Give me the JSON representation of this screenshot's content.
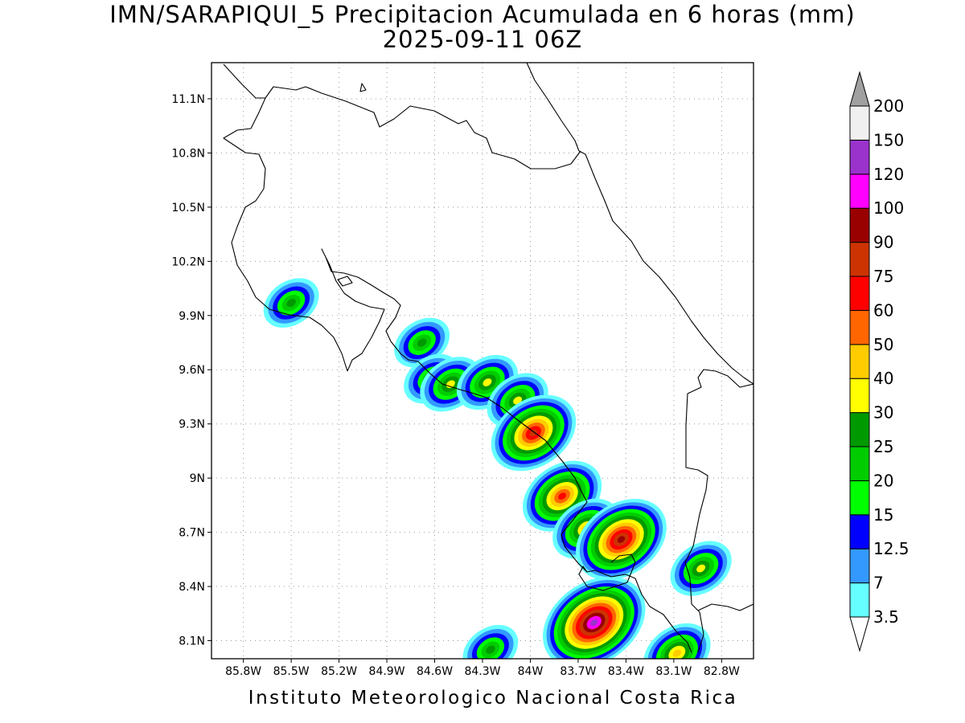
{
  "title": {
    "line1": "IMN/SARAPIQUI_5 Precipitacion Acumulada en 6 horas (mm)",
    "line2": "2025-09-11 06Z"
  },
  "footer": "Instituto Meteorologico Nacional Costa Rica",
  "map": {
    "lon_range": [
      -86.0,
      -82.6
    ],
    "lat_range": [
      8.0,
      11.3
    ],
    "lon_ticks": [
      {
        "value": -85.8,
        "label": "85.8W"
      },
      {
        "value": -85.5,
        "label": "85.5W"
      },
      {
        "value": -85.2,
        "label": "85.2W"
      },
      {
        "value": -84.9,
        "label": "84.9W"
      },
      {
        "value": -84.6,
        "label": "84.6W"
      },
      {
        "value": -84.3,
        "label": "84.3W"
      },
      {
        "value": -84.0,
        "label": "84W"
      },
      {
        "value": -83.7,
        "label": "83.7W"
      },
      {
        "value": -83.4,
        "label": "83.4W"
      },
      {
        "value": -83.1,
        "label": "83.1W"
      },
      {
        "value": -82.8,
        "label": "82.8W"
      }
    ],
    "lat_ticks": [
      {
        "value": 11.1,
        "label": "11.1N"
      },
      {
        "value": 10.8,
        "label": "10.8N"
      },
      {
        "value": 10.5,
        "label": "10.5N"
      },
      {
        "value": 10.2,
        "label": "10.2N"
      },
      {
        "value": 9.9,
        "label": "9.9N"
      },
      {
        "value": 9.6,
        "label": "9.6N"
      },
      {
        "value": 9.3,
        "label": "9.3N"
      },
      {
        "value": 9.0,
        "label": "9N"
      },
      {
        "value": 8.7,
        "label": "8.7N"
      },
      {
        "value": 8.4,
        "label": "8.4N"
      },
      {
        "value": 8.1,
        "label": "8.1N"
      }
    ],
    "grid": true,
    "coastline_color": "#000000"
  },
  "colorbar": {
    "labels": [
      "200",
      "150",
      "120",
      "100",
      "90",
      "75",
      "60",
      "50",
      "40",
      "30",
      "25",
      "20",
      "15",
      "12.5",
      "7",
      "3.5"
    ],
    "colors_bottom_to_top": [
      "#66ffff",
      "#3399ff",
      "#0000ff",
      "#00ff00",
      "#00cc00",
      "#009900",
      "#ffff00",
      "#ffcc00",
      "#ff6600",
      "#ff0000",
      "#cc3300",
      "#990000",
      "#ff00ff",
      "#9933cc",
      "#f0f0f0"
    ],
    "top_triangle_color": "#a0a0a0",
    "bottom_triangle_color": "#ffffff"
  },
  "precip_cells": [
    {
      "lon": -85.5,
      "lat": 9.97,
      "peak_mm": 25
    },
    {
      "lon": -84.68,
      "lat": 9.75,
      "peak_mm": 25
    },
    {
      "lon": -84.62,
      "lat": 9.55,
      "peak_mm": 25
    },
    {
      "lon": -84.5,
      "lat": 9.52,
      "peak_mm": 30
    },
    {
      "lon": -84.27,
      "lat": 9.53,
      "peak_mm": 30
    },
    {
      "lon": -84.08,
      "lat": 9.43,
      "peak_mm": 30
    },
    {
      "lon": -83.98,
      "lat": 9.25,
      "peak_mm": 75
    },
    {
      "lon": -83.8,
      "lat": 8.9,
      "peak_mm": 60
    },
    {
      "lon": -83.65,
      "lat": 8.72,
      "peak_mm": 40
    },
    {
      "lon": -83.43,
      "lat": 8.66,
      "peak_mm": 90
    },
    {
      "lon": -82.93,
      "lat": 8.5,
      "peak_mm": 30
    },
    {
      "lon": -83.6,
      "lat": 8.2,
      "peak_mm": 120
    },
    {
      "lon": -84.25,
      "lat": 8.05,
      "peak_mm": 25
    },
    {
      "lon": -83.08,
      "lat": 8.03,
      "peak_mm": 40
    }
  ]
}
